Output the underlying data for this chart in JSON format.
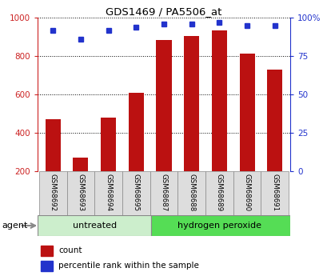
{
  "title": "GDS1469 / PA5506_at",
  "samples": [
    "GSM68692",
    "GSM68693",
    "GSM68694",
    "GSM68695",
    "GSM68687",
    "GSM68688",
    "GSM68689",
    "GSM68690",
    "GSM68691"
  ],
  "counts": [
    470,
    270,
    480,
    610,
    885,
    905,
    935,
    815,
    730
  ],
  "percentiles": [
    92,
    86,
    92,
    94,
    96,
    96,
    97,
    95,
    95
  ],
  "bar_color": "#bb1111",
  "dot_color": "#2233cc",
  "untreated_color": "#cceecc",
  "hperoxide_color": "#55dd55",
  "left_axis_color": "#cc2222",
  "right_axis_color": "#2233cc",
  "ylim_left": [
    200,
    1000
  ],
  "ylim_right": [
    0,
    100
  ],
  "yticks_left": [
    200,
    400,
    600,
    800,
    1000
  ],
  "yticks_right": [
    0,
    25,
    50,
    75,
    100
  ],
  "ytick_labels_right": [
    "0",
    "25",
    "50",
    "75",
    "100%"
  ],
  "agent_label": "agent",
  "legend_count": "count",
  "legend_percentile": "percentile rank within the sample"
}
